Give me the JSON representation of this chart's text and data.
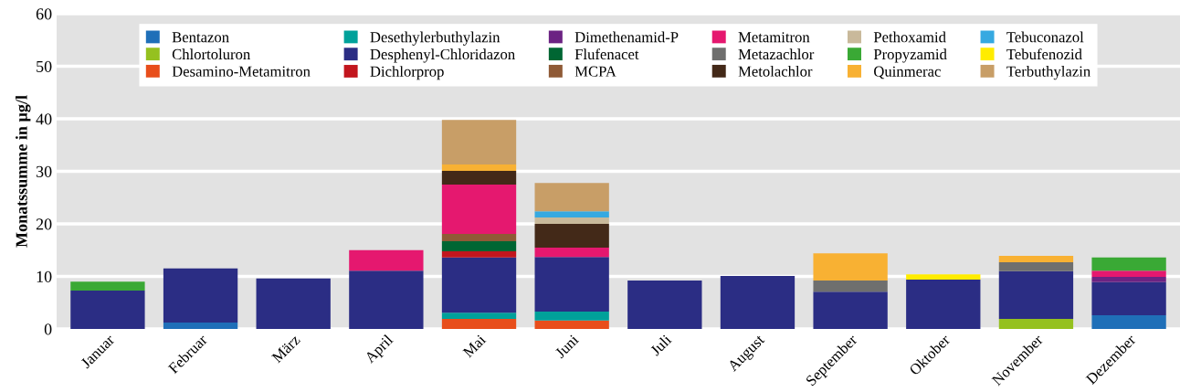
{
  "chart_data": {
    "type": "bar",
    "stacked": true,
    "ylabel": "Monatssumme in µg/l",
    "categories": [
      "Januar",
      "Februar",
      "März",
      "April",
      "Mai",
      "Juni",
      "Juli",
      "August",
      "September",
      "Oktober",
      "November",
      "Dezember"
    ],
    "ylim": [
      0,
      60
    ],
    "yticks": [
      0,
      10,
      20,
      30,
      40,
      50,
      60
    ],
    "grid": "y",
    "legend": "top",
    "series": [
      {
        "name": "Bentazon",
        "color": "#1f6fb8",
        "values": [
          null,
          1.2,
          null,
          null,
          null,
          null,
          null,
          null,
          null,
          null,
          null,
          2.6
        ]
      },
      {
        "name": "Chlortoluron",
        "color": "#95c11f",
        "values": [
          null,
          null,
          null,
          null,
          null,
          null,
          null,
          null,
          null,
          null,
          1.9,
          null
        ]
      },
      {
        "name": "Desamino-Metamitron",
        "color": "#e84e1b",
        "values": [
          null,
          null,
          null,
          null,
          1.9,
          1.6,
          null,
          null,
          null,
          null,
          null,
          null
        ]
      },
      {
        "name": "Desethylerbuthylazin",
        "color": "#00a19a",
        "values": [
          null,
          null,
          null,
          null,
          1.2,
          1.7,
          null,
          null,
          null,
          null,
          null,
          null
        ]
      },
      {
        "name": "Desphenyl-Chloridazon",
        "color": "#2b2d84",
        "values": [
          7.3,
          10.3,
          9.6,
          11.1,
          10.5,
          10.4,
          9.2,
          10.1,
          7.1,
          9.4,
          9.1,
          6.3
        ]
      },
      {
        "name": "Dichlorprop",
        "color": "#c2161e",
        "values": [
          null,
          null,
          null,
          null,
          1.2,
          null,
          null,
          null,
          null,
          null,
          null,
          null
        ]
      },
      {
        "name": "Dimethenamid-P",
        "color": "#6c2383",
        "values": [
          null,
          null,
          null,
          null,
          null,
          null,
          null,
          null,
          null,
          null,
          null,
          1.0
        ]
      },
      {
        "name": "Flufenacet",
        "color": "#006633",
        "values": [
          null,
          null,
          null,
          null,
          1.9,
          null,
          null,
          null,
          null,
          null,
          null,
          null
        ]
      },
      {
        "name": "MCPA",
        "color": "#8f5a36",
        "values": [
          null,
          null,
          null,
          null,
          1.4,
          null,
          null,
          null,
          null,
          null,
          null,
          null
        ]
      },
      {
        "name": "Metamitron",
        "color": "#e5186f",
        "values": [
          null,
          null,
          null,
          3.9,
          9.4,
          1.8,
          null,
          null,
          null,
          null,
          null,
          1.2
        ]
      },
      {
        "name": "Metazachlor",
        "color": "#6f6f6e",
        "values": [
          null,
          null,
          null,
          null,
          null,
          null,
          null,
          null,
          2.1,
          null,
          1.7,
          null
        ]
      },
      {
        "name": "Metolachlor",
        "color": "#432918",
        "values": [
          null,
          null,
          null,
          null,
          2.6,
          4.5,
          null,
          null,
          null,
          null,
          null,
          null
        ]
      },
      {
        "name": "Pethoxamid",
        "color": "#c9b99b",
        "values": [
          null,
          null,
          null,
          null,
          null,
          1.2,
          null,
          null,
          null,
          null,
          null,
          null
        ]
      },
      {
        "name": "Propyzamid",
        "color": "#3aa935",
        "values": [
          1.7,
          null,
          null,
          null,
          null,
          null,
          null,
          null,
          null,
          null,
          null,
          2.5
        ]
      },
      {
        "name": "Quinmerac",
        "color": "#f8b133",
        "values": [
          null,
          null,
          null,
          null,
          1.2,
          null,
          null,
          null,
          5.2,
          null,
          1.2,
          null
        ]
      },
      {
        "name": "Tebuconazol",
        "color": "#36a9e1",
        "values": [
          null,
          null,
          null,
          null,
          null,
          1.2,
          null,
          null,
          null,
          null,
          null,
          null
        ]
      },
      {
        "name": "Tebufenozid",
        "color": "#ffec00",
        "values": [
          null,
          null,
          null,
          null,
          null,
          null,
          null,
          null,
          null,
          1.0,
          null,
          null
        ]
      },
      {
        "name": "Terbuthylazin",
        "color": "#c89e67",
        "values": [
          null,
          null,
          null,
          null,
          8.5,
          5.4,
          null,
          null,
          null,
          null,
          null,
          null
        ]
      }
    ]
  }
}
